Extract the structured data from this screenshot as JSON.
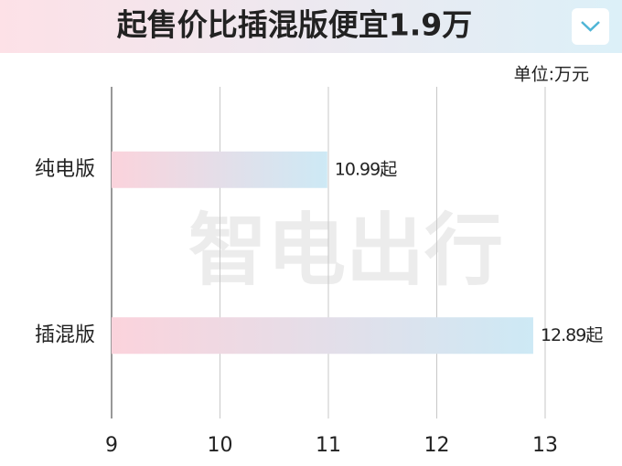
{
  "chart_data": {
    "type": "hbar",
    "title": "起售价比插混版便宜1.9万",
    "unit": "单位:万元",
    "watermark": "智电出行",
    "categories": [
      "纯电版",
      "插混版"
    ],
    "values": [
      10.99,
      12.89
    ],
    "value_labels": [
      "10.99起",
      "12.89起"
    ],
    "colors": [
      "#fbd3dc",
      "#cde9f5"
    ],
    "xlim": [
      9,
      13.65
    ],
    "xticks": [
      9,
      10,
      11,
      12,
      13
    ],
    "grid": true
  }
}
